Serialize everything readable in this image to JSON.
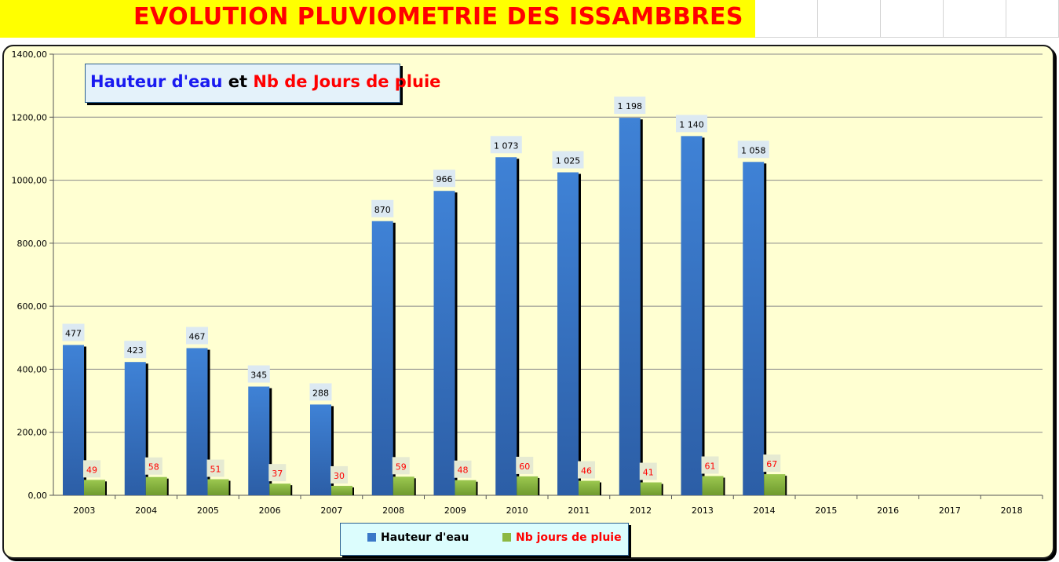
{
  "sheet": {
    "title": "EVOLUTION PLUVIOMETRIE DES ISSAMBBRES"
  },
  "chart_title": {
    "part1": "Hauteur d'eau",
    "part2": " et ",
    "part3": "Nb de Jours de pluie"
  },
  "legend": {
    "series1": "Hauteur d'eau",
    "series2": "Nb jours de pluie"
  },
  "colors": {
    "title_bar": "#ffff00",
    "title_text": "#ff0000",
    "chart_bg": "#ffffd2",
    "series1": "#3b78c8",
    "series2": "#8db842",
    "series2_label": "#ff0000"
  },
  "chart_data": {
    "type": "bar",
    "title": "Hauteur d'eau et Nb de Jours de pluie",
    "categories": [
      "2003",
      "2004",
      "2005",
      "2006",
      "2007",
      "2008",
      "2009",
      "2010",
      "2011",
      "2012",
      "2013",
      "2014",
      "2015",
      "2016",
      "2017",
      "2018"
    ],
    "series": [
      {
        "name": "Hauteur d'eau",
        "values": [
          477,
          423,
          467,
          345,
          288,
          870,
          966,
          1073,
          1025,
          1198,
          1140,
          1058,
          null,
          null,
          null,
          null
        ]
      },
      {
        "name": "Nb jours de pluie",
        "values": [
          49,
          58,
          51,
          37,
          30,
          59,
          48,
          60,
          46,
          41,
          61,
          67,
          null,
          null,
          null,
          null
        ]
      }
    ],
    "data_labels": [
      [
        "477",
        "423",
        "467",
        "345",
        "288",
        "870",
        "966",
        "1 073",
        "1 025",
        "1 198",
        "1 140",
        "1 058"
      ],
      [
        "49",
        "58",
        "51",
        "37",
        "30",
        "59",
        "48",
        "60",
        "46",
        "41",
        "61",
        "67"
      ]
    ],
    "y_ticks": [
      "0,00",
      "200,00",
      "400,00",
      "600,00",
      "800,00",
      "1000,00",
      "1200,00",
      "1400,00"
    ],
    "ylim": [
      0,
      1400
    ],
    "grid": true,
    "legend_position": "bottom"
  }
}
